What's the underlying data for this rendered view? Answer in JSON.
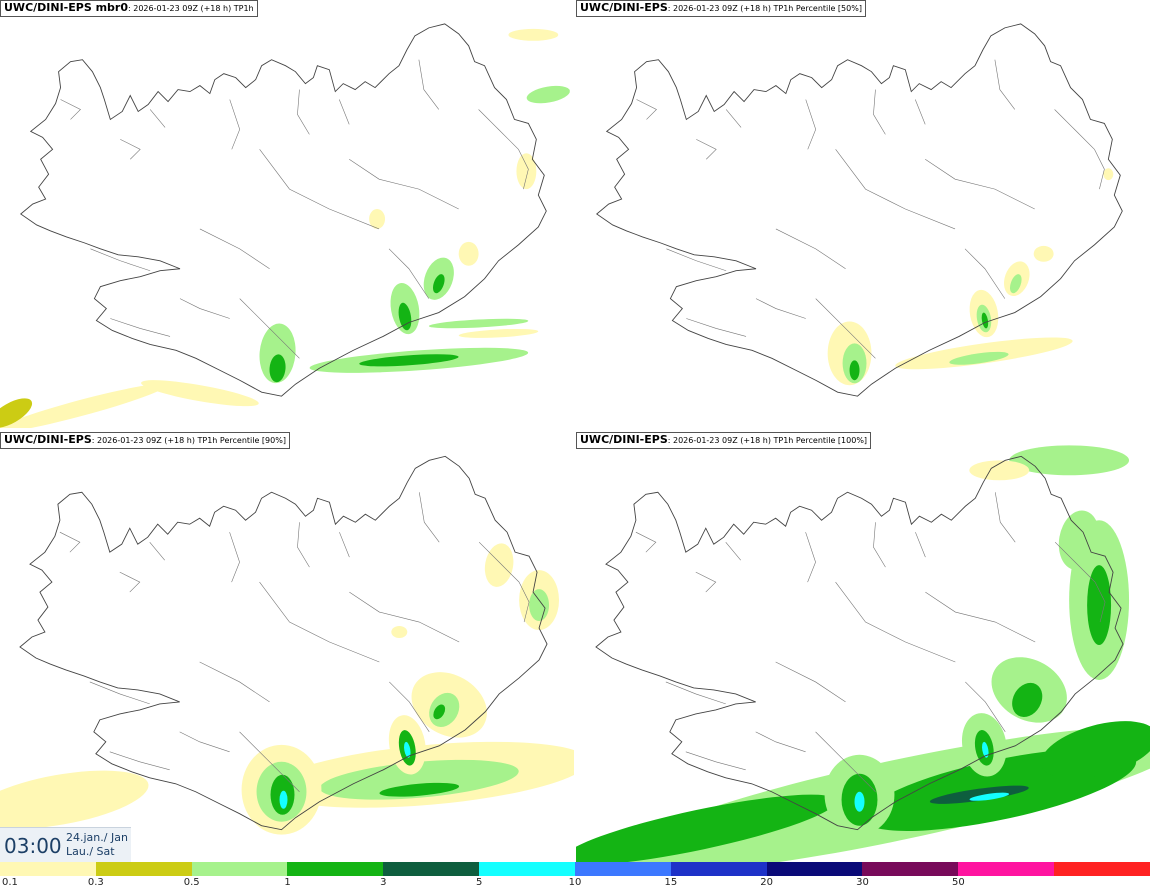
{
  "panels": [
    {
      "title_bold": "UWC/DINI-EPS mbr0",
      "title_rest": ": 2026-01-23 09Z (+18 h) TP1h",
      "variant": 0
    },
    {
      "title_bold": "UWC/DINI-EPS",
      "title_rest": ": 2026-01-23 09Z (+18 h) TP1h Percentile [50%]",
      "variant": 1
    },
    {
      "title_bold": "UWC/DINI-EPS",
      "title_rest": ": 2026-01-23 09Z (+18 h) TP1h Percentile [90%]",
      "variant": 2
    },
    {
      "title_bold": "UWC/DINI-EPS",
      "title_rest": ": 2026-01-23 09Z (+18 h) TP1h Percentile [100%]",
      "variant": 3
    }
  ],
  "time": {
    "hour": "03:00",
    "date_line1": "24.jan./ Jan",
    "date_line2": "Lau./ Sat"
  },
  "colorbar": {
    "colors": [
      "#fff8b4",
      "#cccc14",
      "#a6f28c",
      "#14b414",
      "#0e5e3e",
      "#14ffff",
      "#3c78ff",
      "#1e32c8",
      "#0a0a78",
      "#780a5a",
      "#ff14a0",
      "#ff2222"
    ],
    "labels": [
      "0.1",
      "0.3",
      "0.5",
      "1",
      "3",
      "5",
      "10",
      "15",
      "20",
      "30",
      "50"
    ]
  },
  "legend_colors": {
    "c01": "#fff8b4",
    "c03": "#cccc14",
    "c05": "#a6f28c",
    "c1": "#14b414",
    "c3": "#0e5e3e",
    "c5": "#14ffff"
  }
}
